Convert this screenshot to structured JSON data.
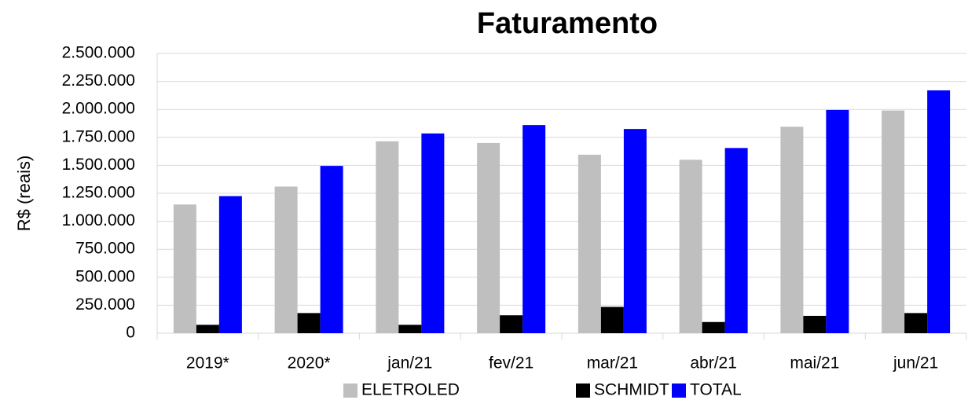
{
  "chart_data": {
    "type": "bar",
    "title": "Faturamento",
    "y_label": "R$ (reais)",
    "categories": [
      "2019*",
      "2020*",
      "jan/21",
      "fev/21",
      "mar/21",
      "abr/21",
      "mai/21",
      "jun/21"
    ],
    "series": [
      {
        "name": "ELETROLED",
        "color": "#bfbfbf",
        "values": [
          1150000,
          1310000,
          1715000,
          1700000,
          1595000,
          1550000,
          1845000,
          1990000
        ]
      },
      {
        "name": "SCHMIDT",
        "color": "#000000",
        "values": [
          75000,
          180000,
          75000,
          160000,
          235000,
          100000,
          155000,
          180000
        ]
      },
      {
        "name": "TOTAL",
        "color": "#0000ff",
        "values": [
          1225000,
          1495000,
          1785000,
          1860000,
          1825000,
          1655000,
          1995000,
          2170000
        ]
      }
    ],
    "ylim": [
      0,
      2500000
    ],
    "yticks": [
      0,
      {
        "value": 250000,
        "label": "250.000"
      },
      {
        "value": 500000,
        "label": "500.000"
      },
      {
        "value": 750000,
        "label": "750.000"
      },
      {
        "value": 1000000,
        "label": "1.000.000"
      },
      {
        "value": 1250000,
        "label": "1.250.000"
      },
      {
        "value": 1500000,
        "label": "1.500.000"
      },
      {
        "value": 1750000,
        "label": "1.750.000"
      },
      {
        "value": 2000000,
        "label": "2.000.000"
      },
      {
        "value": 2250000,
        "label": "2.250.000"
      },
      {
        "value": 2500000,
        "label": "2.500.000"
      }
    ],
    "grid": true,
    "legend": "bottom"
  }
}
